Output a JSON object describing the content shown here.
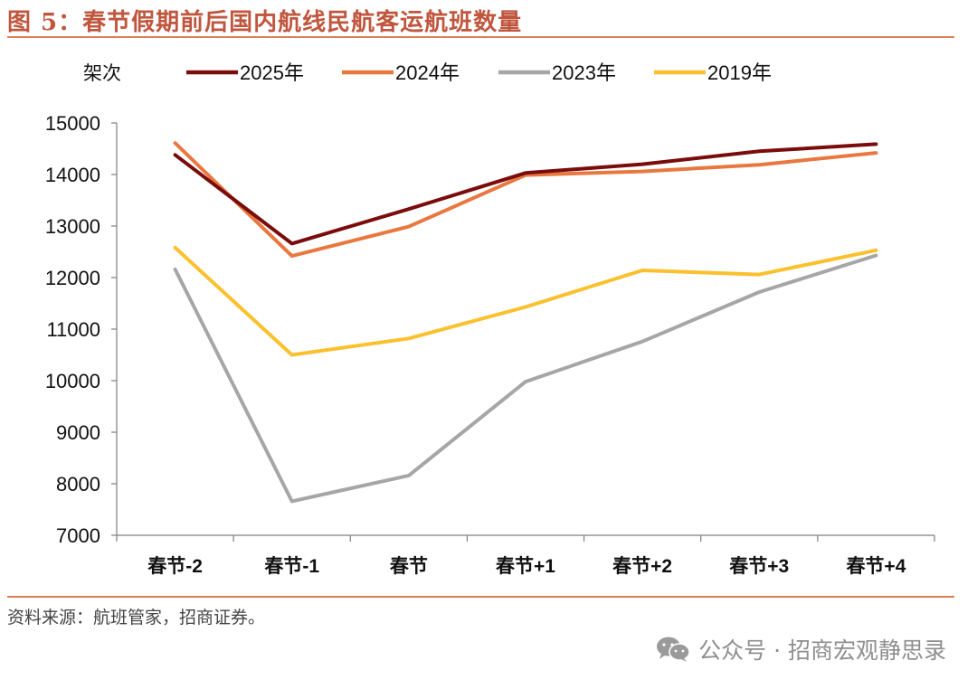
{
  "figure": {
    "title": "图 5：春节假期前后国内航线民航客运航班数量"
  },
  "source": "资料来源：航班管家，招商证券。",
  "watermark": {
    "text": "公众号 · 招商宏观静思录"
  },
  "chart_data": {
    "type": "line",
    "title": "",
    "ylabel": "架次",
    "xlabel": "",
    "categories": [
      "春节-2",
      "春节-1",
      "春节",
      "春节+1",
      "春节+2",
      "春节+3",
      "春节+4"
    ],
    "ylim": [
      7000,
      15000
    ],
    "yticks": [
      7000,
      8000,
      9000,
      10000,
      11000,
      12000,
      13000,
      14000,
      15000
    ],
    "grid": false,
    "legend_position": "top",
    "series": [
      {
        "name": "2025年",
        "color": "#7a0c0c",
        "values": [
          14380,
          12660,
          13330,
          14030,
          14200,
          14450,
          14590
        ]
      },
      {
        "name": "2024年",
        "color": "#e8783f",
        "values": [
          14610,
          12420,
          12990,
          13990,
          14060,
          14190,
          14420
        ]
      },
      {
        "name": "2023年",
        "color": "#a6a6a6",
        "values": [
          12160,
          7660,
          8160,
          9980,
          10760,
          11720,
          12430
        ]
      },
      {
        "name": "2019年",
        "color": "#fbc02d",
        "values": [
          12580,
          10500,
          10820,
          11430,
          12140,
          12060,
          12530
        ]
      }
    ]
  }
}
